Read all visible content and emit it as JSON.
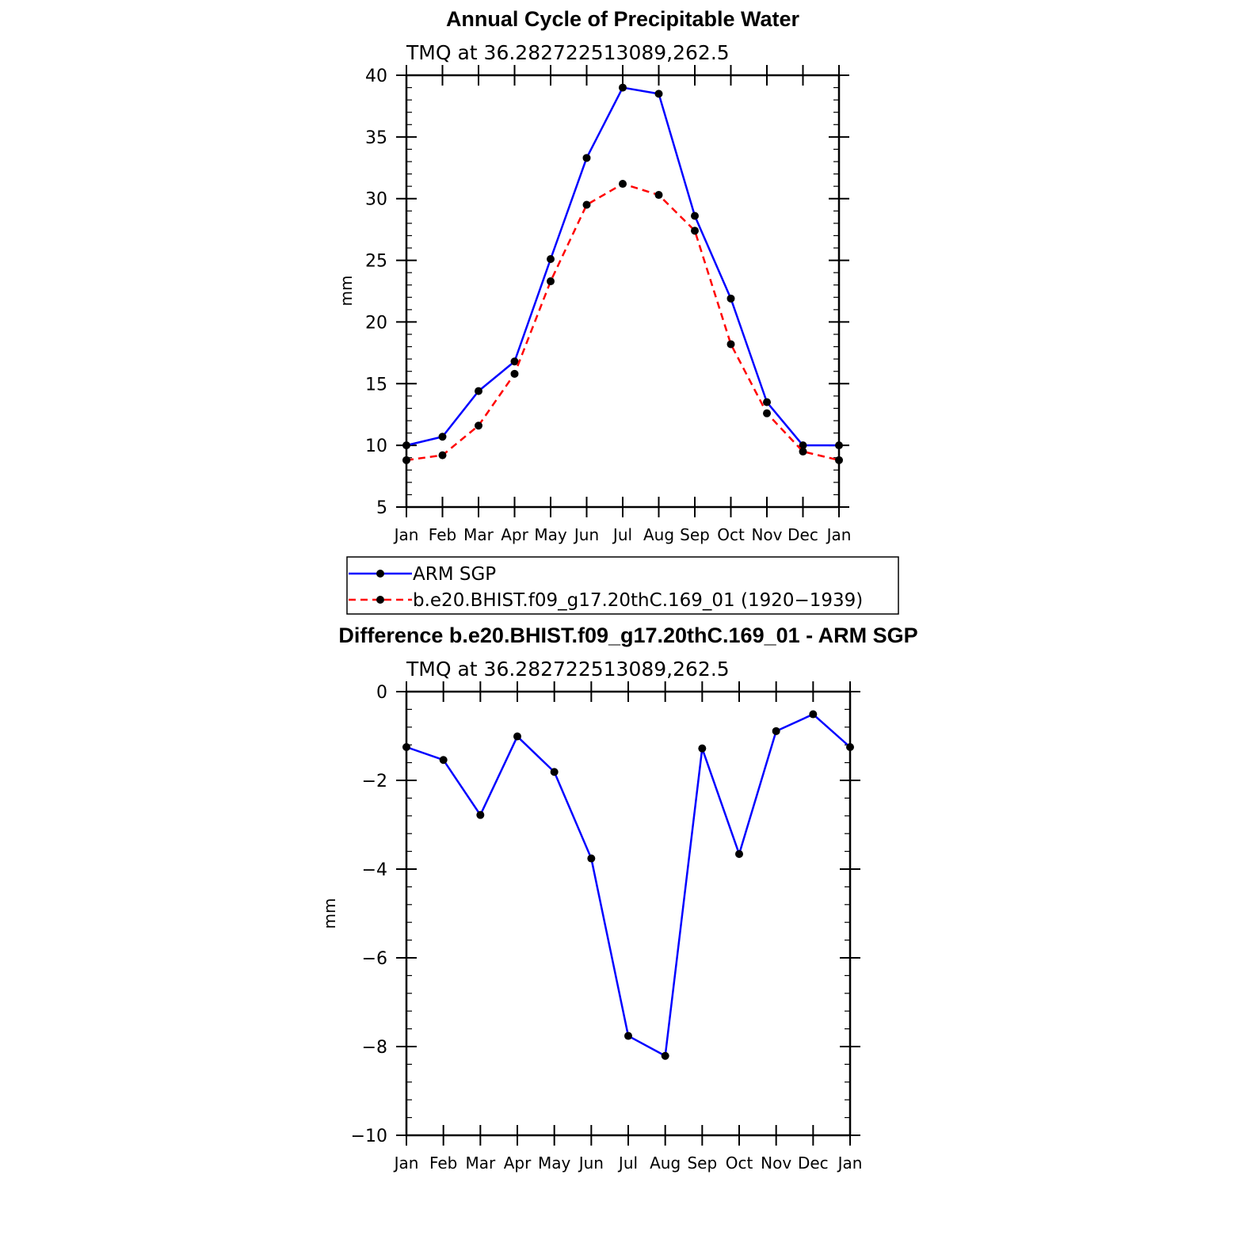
{
  "chart_data": [
    {
      "type": "line",
      "title": "Annual Cycle of Precipitable Water",
      "subtitle": "TMQ at 36.282722513089,262.5",
      "ylabel": "mm",
      "ylim": [
        5,
        40
      ],
      "yticks": [
        5,
        10,
        15,
        20,
        25,
        30,
        35,
        40
      ],
      "categories": [
        "Jan",
        "Feb",
        "Mar",
        "Apr",
        "May",
        "Jun",
        "Jul",
        "Aug",
        "Sep",
        "Oct",
        "Nov",
        "Dec",
        "Jan"
      ],
      "series": [
        {
          "name": "ARM SGP",
          "color": "#0000ff",
          "style": "solid",
          "values": [
            10.0,
            10.7,
            14.4,
            16.8,
            25.1,
            33.3,
            39.0,
            38.5,
            28.6,
            21.9,
            13.5,
            10.0,
            10.0
          ]
        },
        {
          "name": "b.e20.BHIST.f09_g17.20thC.169_01 (1920−1939)",
          "color": "#ff0000",
          "style": "dashed",
          "values": [
            8.8,
            9.2,
            11.6,
            15.8,
            23.3,
            29.5,
            31.2,
            30.3,
            27.4,
            18.2,
            12.6,
            9.5,
            8.8
          ]
        }
      ],
      "legend": "bottom"
    },
    {
      "type": "line",
      "title": "Difference b.e20.BHIST.f09_g17.20thC.169_01 - ARM SGP",
      "subtitle": "TMQ at 36.282722513089,262.5",
      "ylabel": "mm",
      "ylim": [
        -10,
        0
      ],
      "yticks": [
        -10,
        -8,
        -6,
        -4,
        -2,
        0
      ],
      "ytick_labels": [
        "−10",
        "−8",
        "−6",
        "−4",
        "−2",
        "0"
      ],
      "categories": [
        "Jan",
        "Feb",
        "Mar",
        "Apr",
        "May",
        "Jun",
        "Jul",
        "Aug",
        "Sep",
        "Oct",
        "Nov",
        "Dec",
        "Jan"
      ],
      "series": [
        {
          "color": "#0000ff",
          "style": "solid",
          "values": [
            -1.25,
            -1.54,
            -2.78,
            -1.01,
            -1.81,
            -3.76,
            -7.76,
            -8.21,
            -1.28,
            -3.66,
            -0.89,
            -0.51,
            -1.25
          ]
        }
      ]
    }
  ]
}
